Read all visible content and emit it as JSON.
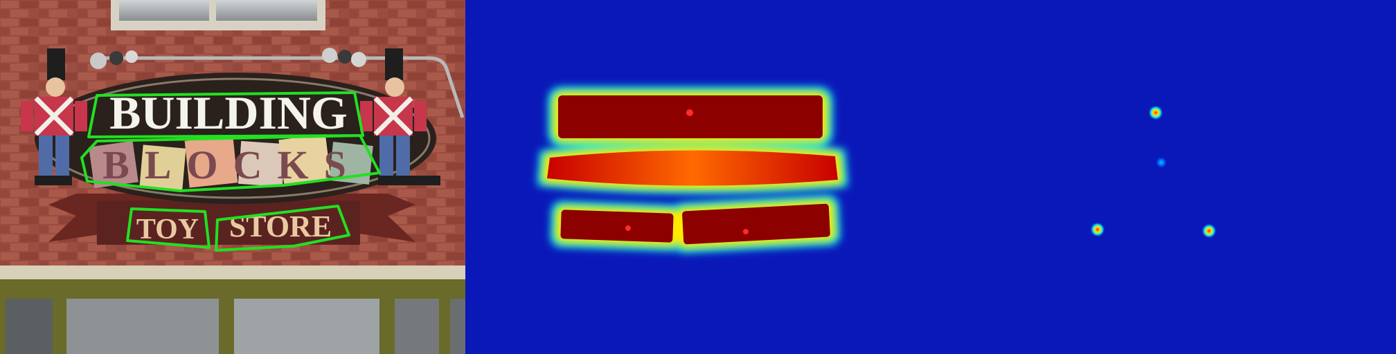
{
  "panels": [
    {
      "id": "photo"
    },
    {
      "id": "text-region-heatmap"
    },
    {
      "id": "center-point-heatmap"
    }
  ],
  "sign": {
    "word_building": "BUILDING",
    "word_blocks": "BLOCKS",
    "word_toy": "TOY",
    "word_store": "STORE"
  },
  "colors": {
    "detection_outline": "#22e022",
    "heatmap_background": "#0a18b8",
    "heatmap_hot": "#8c0000",
    "heatmap_ring": "#00e5ff",
    "brick": "#9a4a3e"
  }
}
